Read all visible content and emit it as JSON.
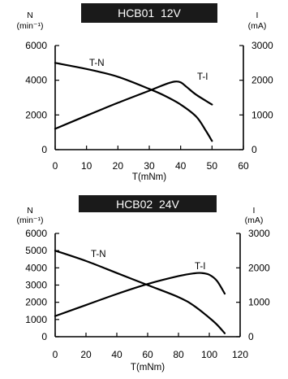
{
  "chart_data": [
    {
      "type": "line",
      "title": "HCB01  12V",
      "xlabel": "T(mNm)",
      "ylabel_left": "N",
      "ylabel_left_unit": "(min⁻¹)",
      "ylabel_right": "I",
      "ylabel_right_unit": "(mA)",
      "xlim": [
        0,
        60
      ],
      "ylim_left": [
        0,
        6000
      ],
      "ylim_right": [
        0,
        3000
      ],
      "x_ticks": [
        0,
        10,
        20,
        30,
        40,
        50,
        60
      ],
      "y_ticks_left": [
        0,
        2000,
        4000,
        6000
      ],
      "y_ticks_right": [
        0,
        1000,
        2000,
        3000
      ],
      "grid": false,
      "series": [
        {
          "name": "T-N",
          "axis": "left",
          "x": [
            0,
            10,
            20,
            30,
            35,
            40,
            45,
            48,
            50
          ],
          "y": [
            5000,
            4650,
            4200,
            3500,
            3100,
            2600,
            1900,
            1100,
            500
          ]
        },
        {
          "name": "T-I",
          "axis": "right",
          "x": [
            0,
            10,
            20,
            30,
            35,
            38,
            40,
            42,
            45,
            50
          ],
          "y": [
            600,
            980,
            1350,
            1700,
            1880,
            1960,
            1940,
            1800,
            1580,
            1300
          ]
        }
      ]
    },
    {
      "type": "line",
      "title": "HCB02  24V",
      "xlabel": "T(mNm)",
      "ylabel_left": "N",
      "ylabel_left_unit": "(min⁻¹)",
      "ylabel_right": "I",
      "ylabel_right_unit": "(mA)",
      "xlim": [
        0,
        120
      ],
      "ylim_left": [
        0,
        6000
      ],
      "ylim_right": [
        0,
        3000
      ],
      "x_ticks": [
        0,
        20,
        40,
        60,
        80,
        100,
        120
      ],
      "y_ticks_left": [
        0,
        1000,
        2000,
        3000,
        4000,
        5000,
        6000
      ],
      "y_ticks_right": [
        0,
        1000,
        2000,
        3000
      ],
      "grid": false,
      "series": [
        {
          "name": "T-N",
          "axis": "left",
          "x": [
            0,
            20,
            40,
            60,
            80,
            90,
            100,
            105,
            110
          ],
          "y": [
            5000,
            4400,
            3700,
            3000,
            2300,
            1800,
            1100,
            700,
            200
          ]
        },
        {
          "name": "T-I",
          "axis": "right",
          "x": [
            0,
            20,
            40,
            60,
            80,
            90,
            95,
            100,
            105,
            110
          ],
          "y": [
            600,
            920,
            1240,
            1530,
            1760,
            1840,
            1850,
            1800,
            1620,
            1250
          ]
        }
      ]
    }
  ]
}
